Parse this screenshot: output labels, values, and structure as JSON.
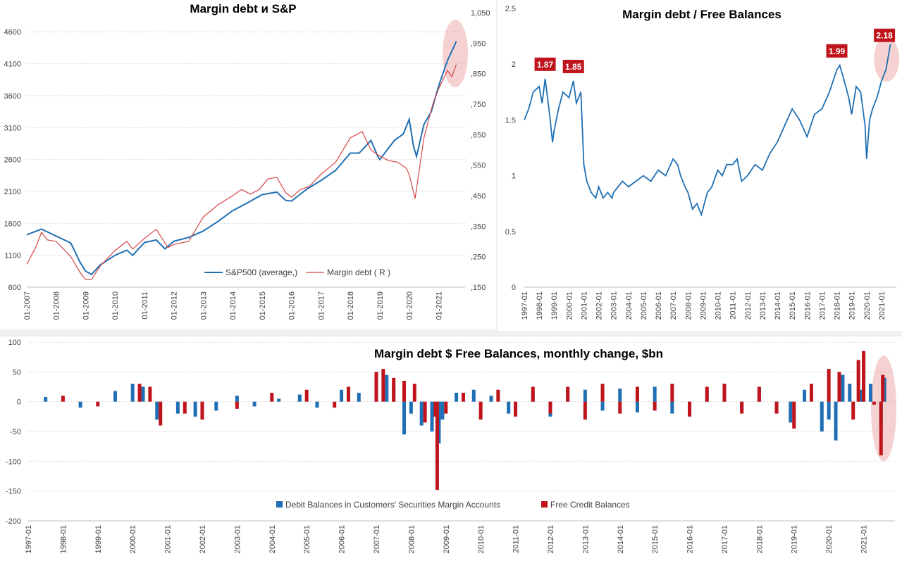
{
  "chart_data": [
    {
      "id": "sp_margin",
      "type": "line",
      "title": "Margin debt и S&P",
      "x_ticks": [
        "01-2007",
        "01-2008",
        "01-2009",
        "01-2010",
        "01-2011",
        "01-2012",
        "01-2013",
        "01-2014",
        "01-2015",
        "01-2016",
        "01-2017",
        "01-2018",
        "01-2019",
        "01-2020",
        "01-2021"
      ],
      "y_left_ticks": [
        "600",
        "1100",
        "1600",
        "2100",
        "2600",
        "3100",
        "3600",
        "4100",
        "4600"
      ],
      "y_left_lim": [
        600,
        4900
      ],
      "y_right_ticks": [
        ",150",
        ",250",
        ",350",
        ",450",
        ",550",
        ",650",
        ",750",
        ",850",
        ",950",
        "1,050"
      ],
      "y_right_lim": [
        150,
        1050
      ],
      "legend_position": "bottom-right (inside plot)",
      "series": [
        {
          "name": "S&P500 (average,)",
          "axis": "left",
          "color": "#1f6fb4",
          "x": [
            2007.0,
            2007.5,
            2008.0,
            2008.5,
            2008.8,
            2009.0,
            2009.2,
            2009.5,
            2010.0,
            2010.4,
            2010.6,
            2011.0,
            2011.4,
            2011.7,
            2012.0,
            2012.5,
            2013.0,
            2013.5,
            2014.0,
            2014.5,
            2015.0,
            2015.5,
            2015.8,
            2016.0,
            2016.5,
            2017.0,
            2017.5,
            2018.0,
            2018.3,
            2018.7,
            2018.95,
            2019.0,
            2019.5,
            2019.8,
            2020.0,
            2020.15,
            2020.25,
            2020.5,
            2020.75,
            2021.0,
            2021.3,
            2021.6
          ],
          "y": [
            1420,
            1510,
            1400,
            1290,
            1000,
            850,
            800,
            950,
            1100,
            1180,
            1100,
            1300,
            1340,
            1200,
            1320,
            1380,
            1480,
            1630,
            1800,
            1920,
            2050,
            2090,
            1960,
            1950,
            2130,
            2270,
            2430,
            2700,
            2700,
            2900,
            2630,
            2600,
            2900,
            3000,
            3230,
            2800,
            2650,
            3150,
            3350,
            3750,
            4150,
            4450
          ]
        },
        {
          "name": "Margin debt ( R )",
          "axis": "right",
          "color": "#d64545",
          "x": [
            2007.0,
            2007.3,
            2007.5,
            2007.7,
            2008.0,
            2008.5,
            2008.8,
            2009.0,
            2009.2,
            2009.5,
            2010.0,
            2010.4,
            2010.6,
            2011.0,
            2011.4,
            2011.8,
            2012.0,
            2012.5,
            2013.0,
            2013.5,
            2014.0,
            2014.3,
            2014.6,
            2014.9,
            2015.2,
            2015.5,
            2015.8,
            2016.0,
            2016.3,
            2016.6,
            2017.0,
            2017.5,
            2018.0,
            2018.4,
            2018.7,
            2019.0,
            2019.3,
            2019.6,
            2019.9,
            2020.0,
            2020.2,
            2020.5,
            2020.8,
            2021.0,
            2021.3,
            2021.45,
            2021.6
          ],
          "y": [
            225,
            280,
            330,
            305,
            300,
            250,
            200,
            175,
            175,
            220,
            270,
            300,
            275,
            310,
            340,
            280,
            290,
            300,
            380,
            420,
            450,
            470,
            455,
            470,
            505,
            510,
            460,
            445,
            470,
            480,
            520,
            560,
            640,
            660,
            600,
            580,
            565,
            560,
            540,
            520,
            440,
            640,
            750,
            800,
            860,
            840,
            880
          ]
        }
      ]
    },
    {
      "id": "ratio",
      "type": "line",
      "title": "Margin debt / Free Balances",
      "x_ticks": [
        "1997-01",
        "1998-01",
        "1999-01",
        "2000-01",
        "2001-01",
        "2002-01",
        "2003-01",
        "2004-01",
        "2005-01",
        "2006-01",
        "2007-01",
        "2008-01",
        "2009-01",
        "2010-01",
        "2011-01",
        "2012-01",
        "2013-01",
        "2014-01",
        "2015-01",
        "2016-01",
        "2017-01",
        "2018-01",
        "2019-01",
        "2020-01",
        "2021-01"
      ],
      "y_ticks": [
        "0",
        "0.5",
        "1",
        "1.5",
        "2",
        "2.5"
      ],
      "ylim": [
        0,
        2.5
      ],
      "annotations": [
        {
          "label": "1.87",
          "x": 1998.4,
          "y": 1.87
        },
        {
          "label": "1.85",
          "x": 2000.3,
          "y": 1.85
        },
        {
          "label": "1.99",
          "x": 2018.0,
          "y": 1.99
        },
        {
          "label": "2.18",
          "x": 2021.6,
          "y": 2.18
        }
      ],
      "series": [
        {
          "name": "",
          "color": "#1f6fb4",
          "x": [
            1997.0,
            1997.3,
            1997.6,
            1998.0,
            1998.2,
            1998.4,
            1998.7,
            1998.9,
            1999.0,
            1999.3,
            1999.6,
            2000.0,
            2000.3,
            2000.5,
            2000.8,
            2001.0,
            2001.2,
            2001.5,
            2001.8,
            2002.0,
            2002.3,
            2002.6,
            2002.9,
            2003.0,
            2003.3,
            2003.6,
            2004.0,
            2004.5,
            2005.0,
            2005.5,
            2006.0,
            2006.5,
            2007.0,
            2007.3,
            2007.5,
            2007.8,
            2008.0,
            2008.3,
            2008.6,
            2008.9,
            2009.0,
            2009.3,
            2009.6,
            2010.0,
            2010.3,
            2010.6,
            2011.0,
            2011.3,
            2011.6,
            2012.0,
            2012.5,
            2013.0,
            2013.5,
            2014.0,
            2014.5,
            2015.0,
            2015.5,
            2016.0,
            2016.5,
            2017.0,
            2017.5,
            2018.0,
            2018.2,
            2018.5,
            2018.8,
            2019.0,
            2019.3,
            2019.6,
            2019.9,
            2020.0,
            2020.2,
            2020.4,
            2020.7,
            2021.0,
            2021.3,
            2021.6
          ],
          "y": [
            1.5,
            1.6,
            1.75,
            1.8,
            1.65,
            1.87,
            1.55,
            1.3,
            1.4,
            1.6,
            1.75,
            1.7,
            1.85,
            1.65,
            1.75,
            1.1,
            0.95,
            0.85,
            0.8,
            0.9,
            0.8,
            0.85,
            0.8,
            0.85,
            0.9,
            0.95,
            0.9,
            0.95,
            1.0,
            0.95,
            1.05,
            1.0,
            1.15,
            1.1,
            1.0,
            0.9,
            0.85,
            0.7,
            0.75,
            0.65,
            0.7,
            0.85,
            0.9,
            1.05,
            1.0,
            1.1,
            1.1,
            1.15,
            0.95,
            1.0,
            1.1,
            1.05,
            1.2,
            1.3,
            1.45,
            1.6,
            1.5,
            1.35,
            1.55,
            1.6,
            1.75,
            1.95,
            1.99,
            1.85,
            1.7,
            1.55,
            1.8,
            1.75,
            1.45,
            1.15,
            1.5,
            1.6,
            1.7,
            1.85,
            1.95,
            2.18
          ]
        }
      ]
    },
    {
      "id": "monthly_change",
      "type": "bar",
      "title": "Margin debt $ Free Balances, monthly change, $bn",
      "x_ticks": [
        "1997-01",
        "1998-01",
        "1999-01",
        "2000-01",
        "2001-01",
        "2002-01",
        "2003-01",
        "2004-01",
        "2005-01",
        "2006-01",
        "2007-01",
        "2008-01",
        "2009-01",
        "2010-01",
        "2011-01",
        "2012-01",
        "2013-01",
        "2014-01",
        "2015-01",
        "2016-01",
        "2017-01",
        "2018-01",
        "2019-01",
        "2020-01",
        "2021-01"
      ],
      "y_ticks": [
        "-200",
        "-150",
        "-100",
        "-50",
        "0",
        "50",
        "100"
      ],
      "ylim": [
        -200,
        100
      ],
      "legend_position": "bottom-center",
      "series": [
        {
          "name": "Debit Balances in Customers' Securities Margin Accounts",
          "color": "#1f6fb4",
          "x": [
            1997.5,
            1998.5,
            1999.5,
            2000.0,
            2000.3,
            2000.7,
            2001.3,
            2001.8,
            2002.4,
            2003.0,
            2003.5,
            2004.2,
            2004.8,
            2005.3,
            2006.0,
            2006.5,
            2007.0,
            2007.3,
            2007.5,
            2007.8,
            2008.0,
            2008.3,
            2008.6,
            2008.8,
            2008.9,
            2009.3,
            2009.8,
            2010.3,
            2010.8,
            2011.5,
            2012.0,
            2012.5,
            2013.0,
            2013.5,
            2014.0,
            2014.5,
            2015.0,
            2015.5,
            2016.0,
            2016.5,
            2017.0,
            2017.5,
            2018.0,
            2018.5,
            2018.9,
            2019.3,
            2019.8,
            2020.0,
            2020.2,
            2020.4,
            2020.6,
            2020.9,
            2021.0,
            2021.2,
            2021.5,
            2021.6
          ],
          "y": [
            8,
            -10,
            18,
            30,
            25,
            -30,
            -20,
            -25,
            -15,
            10,
            -8,
            5,
            12,
            -10,
            20,
            15,
            30,
            45,
            25,
            -55,
            -20,
            -40,
            -50,
            -70,
            -30,
            15,
            20,
            10,
            -20,
            15,
            -25,
            18,
            20,
            -15,
            22,
            -18,
            25,
            -20,
            -22,
            20,
            30,
            -15,
            25,
            -18,
            -35,
            20,
            -50,
            -30,
            -65,
            45,
            30,
            20,
            55,
            30,
            -40,
            40
          ]
        },
        {
          "name": "Free Credit Balances",
          "color": "#c0141c",
          "x": [
            1998.0,
            1999.0,
            2000.2,
            2000.5,
            2000.8,
            2001.5,
            2002.0,
            2003.0,
            2004.0,
            2005.0,
            2005.8,
            2006.2,
            2007.0,
            2007.2,
            2007.5,
            2007.8,
            2008.1,
            2008.4,
            2008.7,
            2008.75,
            2009.0,
            2009.5,
            2010.0,
            2010.5,
            2011.0,
            2011.5,
            2012.0,
            2012.5,
            2013.0,
            2013.5,
            2014.0,
            2014.5,
            2015.0,
            2015.5,
            2016.0,
            2016.5,
            2017.0,
            2017.5,
            2018.0,
            2018.5,
            2019.0,
            2019.5,
            2020.0,
            2020.3,
            2020.7,
            2020.85,
            2021.0,
            2021.3,
            2021.5,
            2021.55
          ],
          "y": [
            10,
            -8,
            30,
            25,
            -40,
            -20,
            -30,
            -12,
            15,
            20,
            -10,
            25,
            50,
            55,
            40,
            35,
            30,
            -35,
            -25,
            -148,
            -20,
            15,
            -30,
            20,
            -25,
            25,
            -20,
            25,
            -30,
            30,
            -20,
            25,
            -15,
            30,
            -25,
            25,
            30,
            -20,
            25,
            -20,
            -45,
            30,
            55,
            50,
            -30,
            70,
            85,
            -5,
            -90,
            45
          ]
        }
      ]
    }
  ]
}
